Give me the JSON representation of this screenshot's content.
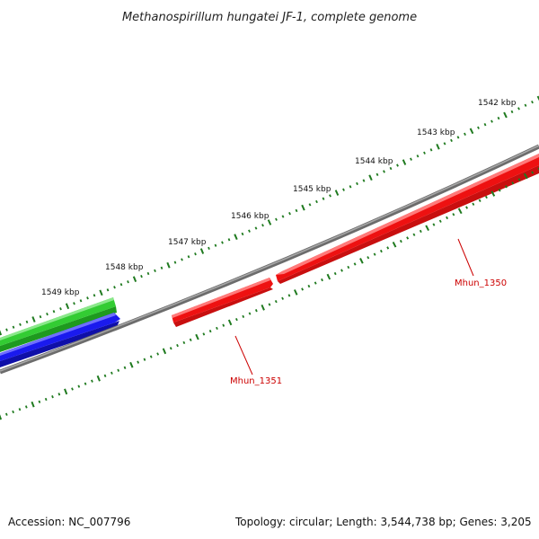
{
  "title": "Methanospirillum hungatei JF-1, complete genome",
  "footer": {
    "accession": "Accession: NC_007796",
    "summary": "Topology: circular; Length: 3,544,738 bp; Genes: 3,205"
  },
  "ruler": {
    "tick_color": "#1f7a1f",
    "labels": [
      "1542 kbp",
      "1543 kbp",
      "1544 kbp",
      "1545 kbp",
      "1546 kbp",
      "1547 kbp",
      "1548 kbp",
      "1549 kbp"
    ]
  },
  "backbone_color": "#8a8a8a",
  "features": [
    {
      "name": "green-track",
      "color": "#33cc33",
      "highlight": "#88ee88"
    },
    {
      "name": "blue-track",
      "color": "#1a1aee",
      "highlight": "#6f6fff"
    },
    {
      "name": "Mhun_1350",
      "color": "#ee1111",
      "highlight": "#ff7777"
    },
    {
      "name": "Mhun_1351",
      "color": "#ee1111",
      "highlight": "#ff7777"
    }
  ],
  "gene_labels": [
    "Mhun_1350",
    "Mhun_1351"
  ],
  "gene_label_color": "#cc0000"
}
